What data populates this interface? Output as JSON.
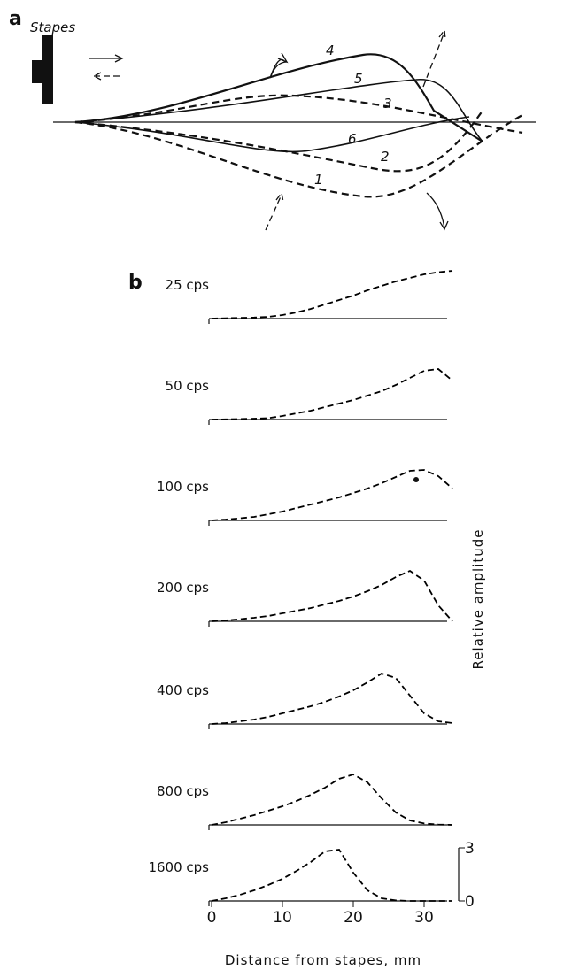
{
  "panel_a": {
    "label": "a",
    "stapes": "Stapes",
    "curve_labels": [
      "1",
      "2",
      "3",
      "4",
      "5",
      "6"
    ]
  },
  "chart_data": [
    {
      "type": "line",
      "panel_label": "b",
      "title": "25 cps",
      "linestyle": "dashed",
      "color": "#000000",
      "xlim": [
        0,
        34
      ],
      "ylim": [
        0,
        3
      ],
      "x": [
        0,
        2,
        4,
        6,
        8,
        10,
        12,
        14,
        16,
        18,
        20,
        22,
        24,
        26,
        28,
        30,
        32,
        34
      ],
      "values": [
        0,
        0.02,
        0.04,
        0.06,
        0.1,
        0.2,
        0.35,
        0.55,
        0.8,
        1.05,
        1.3,
        1.6,
        1.85,
        2.1,
        2.3,
        2.5,
        2.62,
        2.7
      ]
    },
    {
      "type": "line",
      "title": "50 cps",
      "linestyle": "dashed",
      "color": "#000000",
      "xlim": [
        0,
        34
      ],
      "ylim": [
        0,
        3
      ],
      "x": [
        0,
        2,
        4,
        6,
        8,
        10,
        12,
        14,
        16,
        18,
        20,
        22,
        24,
        26,
        28,
        30,
        32,
        34
      ],
      "values": [
        0,
        0.01,
        0.03,
        0.05,
        0.08,
        0.2,
        0.35,
        0.5,
        0.7,
        0.9,
        1.1,
        1.35,
        1.6,
        1.95,
        2.35,
        2.75,
        2.85,
        2.2
      ]
    },
    {
      "type": "line",
      "title": "100 cps",
      "linestyle": "dashed",
      "color": "#000000",
      "xlim": [
        0,
        34
      ],
      "ylim": [
        0,
        3
      ],
      "x": [
        0,
        2,
        4,
        6,
        8,
        10,
        12,
        14,
        16,
        18,
        20,
        22,
        24,
        26,
        28,
        30,
        32,
        34
      ],
      "values": [
        0,
        0.05,
        0.12,
        0.2,
        0.35,
        0.5,
        0.7,
        0.9,
        1.1,
        1.3,
        1.55,
        1.8,
        2.1,
        2.45,
        2.8,
        2.85,
        2.5,
        1.8
      ]
    },
    {
      "type": "line",
      "title": "200 cps",
      "linestyle": "dashed",
      "color": "#000000",
      "xlim": [
        0,
        34
      ],
      "ylim": [
        0,
        3
      ],
      "x": [
        0,
        2,
        4,
        6,
        8,
        10,
        12,
        14,
        16,
        18,
        20,
        22,
        24,
        26,
        28,
        30,
        32,
        34
      ],
      "values": [
        0,
        0.05,
        0.12,
        0.2,
        0.3,
        0.45,
        0.6,
        0.75,
        0.95,
        1.15,
        1.4,
        1.7,
        2.05,
        2.5,
        2.85,
        2.3,
        0.9,
        0
      ]
    },
    {
      "type": "line",
      "title": "400 cps",
      "linestyle": "dashed",
      "color": "#000000",
      "xlim": [
        0,
        34
      ],
      "ylim": [
        0,
        3
      ],
      "x": [
        0,
        2,
        4,
        6,
        8,
        10,
        12,
        14,
        16,
        18,
        20,
        22,
        24,
        26,
        28,
        30,
        32,
        34
      ],
      "values": [
        0,
        0.05,
        0.15,
        0.25,
        0.4,
        0.6,
        0.8,
        1.0,
        1.25,
        1.55,
        1.9,
        2.35,
        2.85,
        2.6,
        1.6,
        0.6,
        0.15,
        0.05
      ]
    },
    {
      "type": "line",
      "title": "800 cps",
      "linestyle": "dashed",
      "color": "#000000",
      "xlim": [
        0,
        34
      ],
      "ylim": [
        0,
        3
      ],
      "x": [
        0,
        2,
        4,
        6,
        8,
        10,
        12,
        14,
        16,
        18,
        20,
        22,
        24,
        26,
        28,
        30,
        32,
        34
      ],
      "values": [
        0,
        0.15,
        0.35,
        0.55,
        0.8,
        1.05,
        1.35,
        1.7,
        2.1,
        2.6,
        2.85,
        2.4,
        1.5,
        0.7,
        0.25,
        0.08,
        0.02,
        0
      ]
    },
    {
      "type": "line",
      "title": "1600 cps",
      "linestyle": "dashed",
      "color": "#000000",
      "xlim": [
        0,
        34
      ],
      "ylim": [
        0,
        3
      ],
      "x": [
        0,
        2,
        4,
        6,
        8,
        10,
        12,
        14,
        16,
        18,
        20,
        22,
        24,
        26,
        28,
        30,
        32,
        34
      ],
      "values": [
        0,
        0.15,
        0.35,
        0.6,
        0.9,
        1.25,
        1.7,
        2.2,
        2.8,
        2.9,
        1.6,
        0.6,
        0.15,
        0.03,
        0,
        0,
        0,
        0
      ],
      "xticks": [
        0,
        10,
        20,
        30
      ],
      "yticks": [
        0,
        3
      ],
      "xlabel": "Distance from stapes, mm",
      "ylabel": "Relative amplitude"
    }
  ]
}
